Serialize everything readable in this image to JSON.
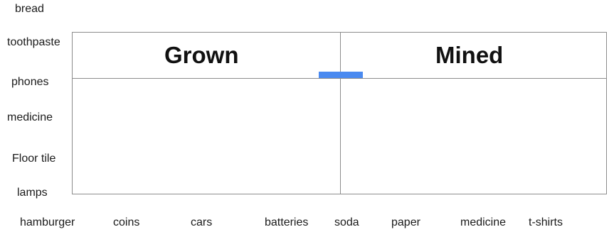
{
  "left_items": [
    "bread",
    "toothpaste",
    "phones",
    "medicine",
    "Floor tile",
    "lamps"
  ],
  "bottom_items": [
    "hamburger",
    "coins",
    "cars",
    "batteries",
    "soda",
    "paper",
    "medicine",
    "t-shirts"
  ],
  "columns": {
    "left": "Grown",
    "right": "Mined"
  },
  "colors": {
    "handle": "#4a8af0",
    "border": "#8c8c8c"
  }
}
